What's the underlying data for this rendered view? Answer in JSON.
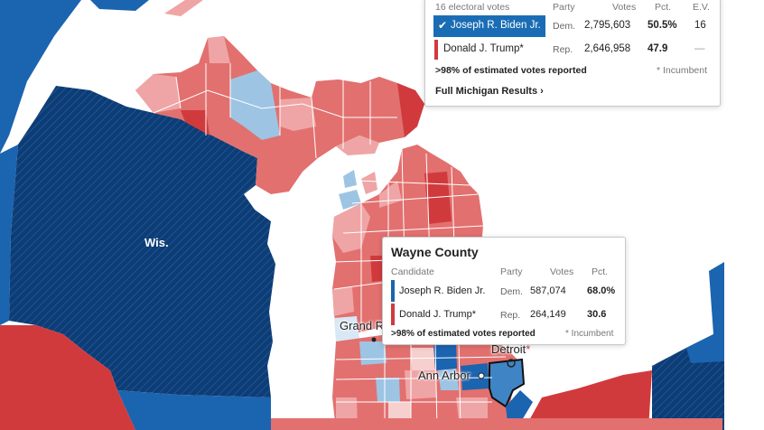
{
  "colors": {
    "dem_solid": "#1b64b0",
    "dem_dark": "#0d3d76",
    "dem_light": "#9ec4e4",
    "rep_solid": "#d13a3d",
    "rep_mid": "#e2706f",
    "rep_light": "#efa5a5",
    "rep_pale": "#f6cfcf",
    "water": "#ffffff",
    "win_highlight": "#1a6db5"
  },
  "map": {
    "state_labels": [
      "Wis."
    ],
    "city_labels": {
      "grand_rapids": "Grand R",
      "detroit": "Detroit",
      "detroit_marker": "*",
      "ann_arbor": "Ann Arbor"
    }
  },
  "state_results": {
    "header": {
      "electoral_votes": "16 electoral votes",
      "party": "Party",
      "votes": "Votes",
      "pct": "Pct.",
      "ev": "E.V."
    },
    "candidates": [
      {
        "check": "✔",
        "name": "Joseph R. Biden Jr.",
        "party": "Dem.",
        "votes": "2,795,603",
        "pct": "50.5%",
        "ev": "16",
        "winner": true
      },
      {
        "check": "",
        "name": "Donald J. Trump*",
        "party": "Rep.",
        "votes": "2,646,958",
        "pct": "47.9",
        "ev": "—",
        "winner": false
      }
    ],
    "reported": ">98% of estimated votes reported",
    "incumbent_note": "* Incumbent",
    "full_results_link": "Full Michigan Results ›"
  },
  "county_results": {
    "title": "Wayne County",
    "header": {
      "candidate": "Candidate",
      "party": "Party",
      "votes": "Votes",
      "pct": "Pct."
    },
    "candidates": [
      {
        "name": "Joseph R. Biden Jr.",
        "party": "Dem.",
        "votes": "587,074",
        "pct": "68.0%"
      },
      {
        "name": "Donald J. Trump*",
        "party": "Rep.",
        "votes": "264,149",
        "pct": "30.6"
      }
    ],
    "reported": ">98% of estimated votes reported",
    "incumbent_note": "* Incumbent"
  }
}
